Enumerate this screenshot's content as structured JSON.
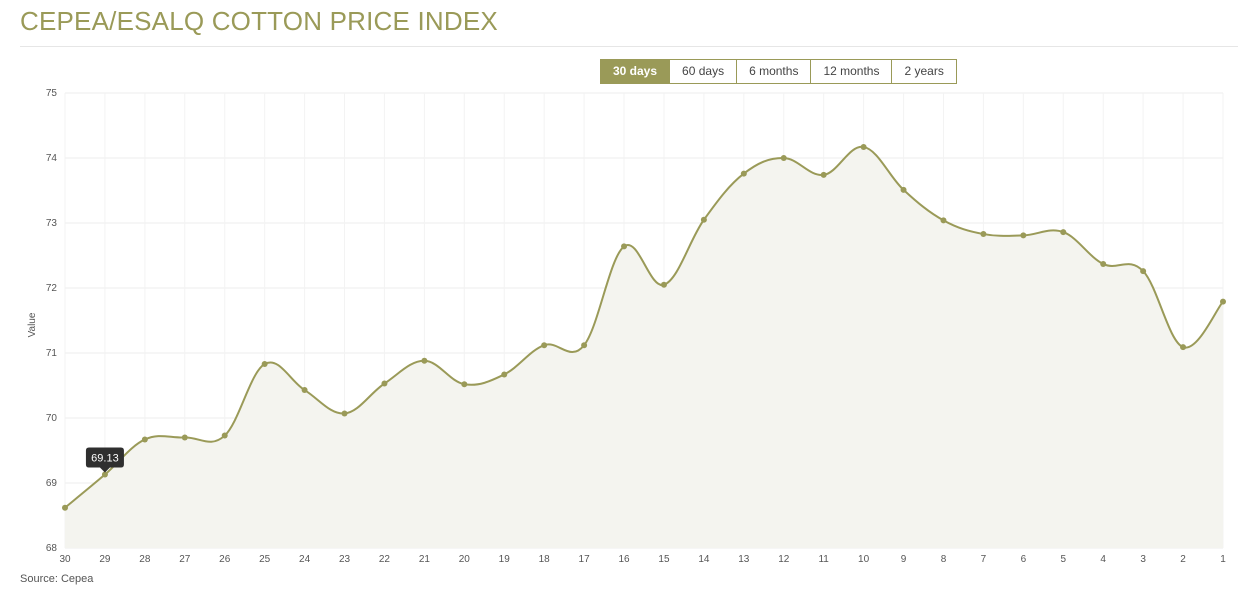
{
  "header": {
    "title": "CEPEA/ESALQ COTTON PRICE INDEX"
  },
  "range_buttons": [
    {
      "label": "30 days",
      "active": true
    },
    {
      "label": "60 days",
      "active": false
    },
    {
      "label": "6 months",
      "active": false
    },
    {
      "label": "12 months",
      "active": false
    },
    {
      "label": "2 years",
      "active": false
    }
  ],
  "footer": {
    "source": "Source: Cepea"
  },
  "tooltip": {
    "text": "69.13"
  },
  "colors": {
    "accent": "#9a9a58",
    "fill": "#f4f4ef",
    "grid": "#ececec",
    "tooltip_bg": "#2f2f2f"
  },
  "chart_data": {
    "type": "area",
    "ylabel": "Value",
    "xlabel": "",
    "ylim": [
      68,
      75
    ],
    "yticks": [
      68,
      69,
      70,
      71,
      72,
      73,
      74,
      75
    ],
    "grid": true,
    "categories": [
      "30",
      "29",
      "28",
      "27",
      "26",
      "25",
      "24",
      "23",
      "22",
      "21",
      "20",
      "19",
      "18",
      "17",
      "16",
      "15",
      "14",
      "13",
      "12",
      "11",
      "10",
      "9",
      "8",
      "7",
      "6",
      "5",
      "4",
      "3",
      "2",
      "1"
    ],
    "series": [
      {
        "values": [
          68.62,
          69.13,
          69.67,
          69.7,
          69.73,
          70.83,
          70.43,
          70.07,
          70.53,
          70.88,
          70.52,
          70.67,
          71.12,
          71.12,
          72.64,
          72.05,
          73.05,
          73.76,
          74.0,
          73.74,
          74.17,
          73.51,
          73.04,
          72.83,
          72.81,
          72.86,
          72.37,
          72.26,
          71.09,
          71.79
        ]
      }
    ],
    "highlight": {
      "category": "29",
      "value": 69.13
    }
  }
}
